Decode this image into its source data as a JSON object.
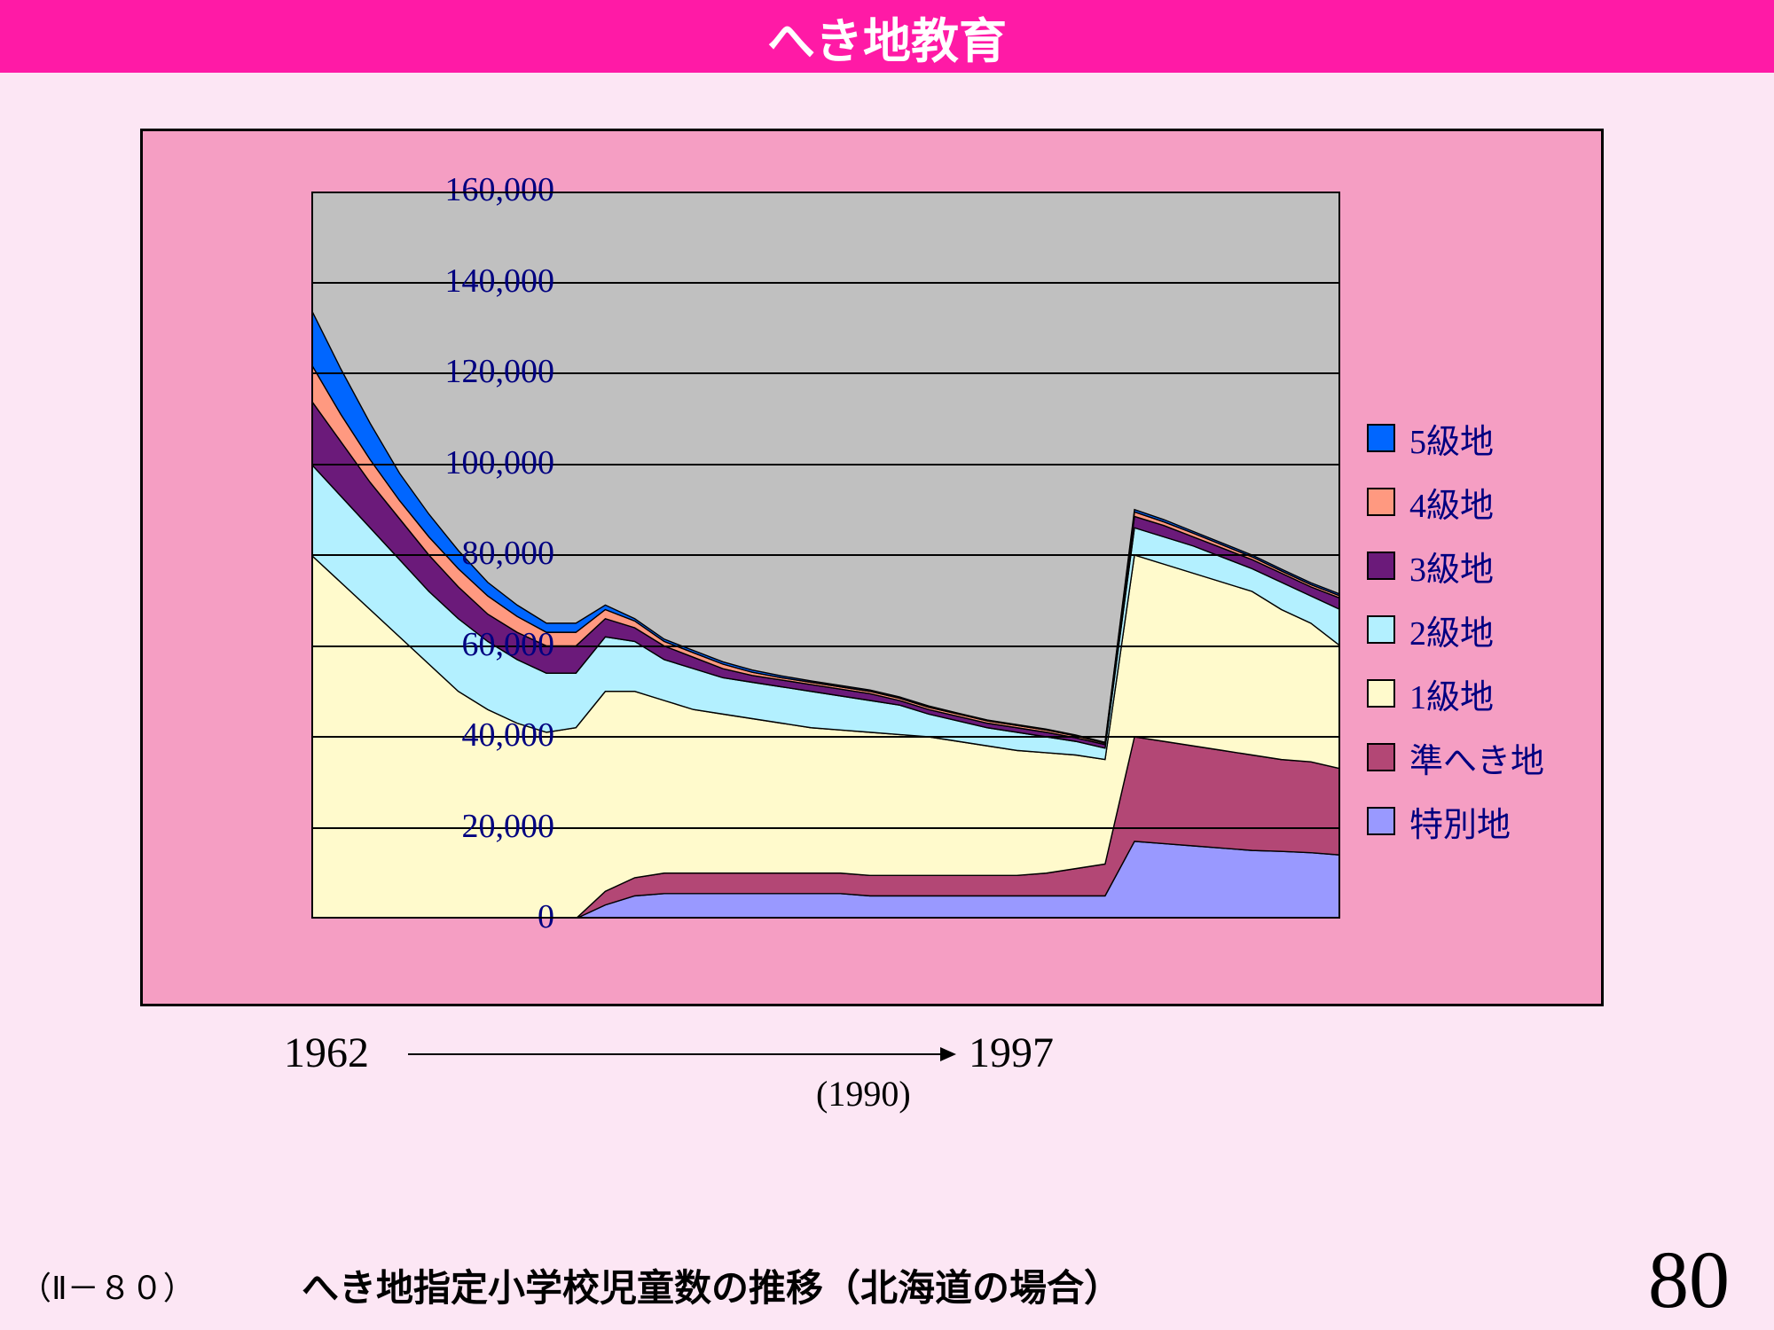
{
  "title": "へき地教育",
  "chart": {
    "type": "stacked-area",
    "ylim": [
      0,
      160000
    ],
    "ytick_step": 20000,
    "ytick_labels": [
      "0",
      "20,000",
      "40,000",
      "60,000",
      "80,000",
      "100,000",
      "120,000",
      "140,000",
      "160,000"
    ],
    "plot_bg": "#c0c0c0",
    "frame_bg": "#f59ec3",
    "grid_color": "#000000",
    "ylabel_color": "#000080",
    "ylabel_fontsize": 38,
    "series_order_top_to_bottom": [
      "5級地",
      "4級地",
      "3級地",
      "2級地",
      "1級地",
      "準へき地",
      "特別地"
    ],
    "colors": {
      "5級地": "#0066ff",
      "4級地": "#ff9980",
      "3級地": "#6b1a7a",
      "2級地": "#b3f0ff",
      "1級地": "#fffacc",
      "準へき地": "#b34775",
      "特別地": "#9999ff"
    },
    "n_points": 36,
    "cumulative_tops": {
      "特別地": [
        0,
        0,
        0,
        0,
        0,
        0,
        0,
        0,
        0,
        0,
        3000,
        5000,
        5500,
        5500,
        5500,
        5500,
        5500,
        5500,
        5500,
        5000,
        5000,
        5000,
        5000,
        5000,
        5000,
        5000,
        5000,
        5000,
        17000,
        16500,
        16000,
        15500,
        15000,
        14800,
        14500,
        14000
      ],
      "準へき地": [
        0,
        0,
        0,
        0,
        0,
        0,
        0,
        0,
        0,
        0,
        6000,
        9000,
        10000,
        10000,
        10000,
        10000,
        10000,
        10000,
        10000,
        9500,
        9500,
        9500,
        9500,
        9500,
        9500,
        10000,
        11000,
        12000,
        40000,
        39000,
        38000,
        37000,
        36000,
        35000,
        34500,
        33000
      ],
      "1級地": [
        80000,
        74000,
        68000,
        62000,
        56000,
        50000,
        46000,
        43000,
        41000,
        42000,
        50000,
        50000,
        48000,
        46000,
        45000,
        44000,
        43000,
        42000,
        41500,
        41000,
        40500,
        40000,
        39000,
        38000,
        37000,
        36500,
        36000,
        35000,
        80000,
        78000,
        76000,
        74000,
        72000,
        68000,
        65000,
        60000
      ],
      "2級地": [
        100000,
        93000,
        86000,
        79000,
        72000,
        66000,
        61000,
        57000,
        54000,
        54000,
        62000,
        61000,
        57000,
        55000,
        53000,
        52000,
        51000,
        50000,
        49000,
        48000,
        47000,
        45000,
        43500,
        42000,
        41000,
        40000,
        39000,
        37500,
        86000,
        84000,
        82000,
        79500,
        77000,
        74000,
        71000,
        68000
      ],
      "3級地": [
        114000,
        105000,
        96000,
        88000,
        80000,
        73000,
        67000,
        63000,
        60000,
        60000,
        66000,
        64000,
        60000,
        57500,
        55000,
        53500,
        52500,
        51500,
        50500,
        49500,
        48000,
        46000,
        44500,
        43000,
        42000,
        41000,
        39800,
        38300,
        88500,
        86500,
        84000,
        81500,
        79000,
        76000,
        73000,
        70500
      ],
      "4級地": [
        122000,
        111000,
        101000,
        92000,
        84000,
        77000,
        71000,
        66500,
        63000,
        63000,
        68000,
        65500,
        61000,
        58500,
        56000,
        54200,
        53000,
        52000,
        51000,
        50000,
        48500,
        46500,
        45000,
        43500,
        42500,
        41500,
        40200,
        38600,
        89500,
        87300,
        84800,
        82200,
        79600,
        76500,
        73500,
        71000
      ],
      "5級地": [
        134000,
        121000,
        109000,
        98000,
        89000,
        81000,
        74000,
        69000,
        65000,
        65000,
        69000,
        66000,
        61500,
        59000,
        56500,
        54700,
        53400,
        52300,
        51300,
        50300,
        48800,
        46800,
        45200,
        43700,
        42700,
        41700,
        40400,
        38800,
        90000,
        87800,
        85200,
        82600,
        80000,
        76900,
        73900,
        71400
      ]
    }
  },
  "legend": [
    {
      "label": "5級地",
      "color": "#0066ff"
    },
    {
      "label": "4級地",
      "color": "#ff9980"
    },
    {
      "label": "3級地",
      "color": "#6b1a7a"
    },
    {
      "label": "2級地",
      "color": "#b3f0ff"
    },
    {
      "label": "1級地",
      "color": "#fffacc"
    },
    {
      "label": "準へき地",
      "color": "#b34775"
    },
    {
      "label": "特別地",
      "color": "#9999ff"
    }
  ],
  "x_axis": {
    "start_label": "1962",
    "end_label": "1997",
    "mid_label": "(1990)"
  },
  "footer": {
    "left": "（Ⅱ－８０）",
    "caption": "へき地指定小学校児童数の推移（北海道の場合）",
    "page": "80"
  }
}
